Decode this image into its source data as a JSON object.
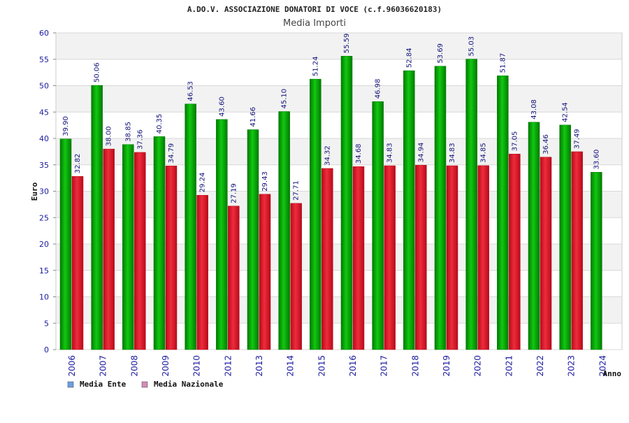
{
  "title": "A.DO.V. ASSOCIAZIONE DONATORI DI VOCE (c.f.96036620183)",
  "subtitle": "Media Importi",
  "colors": {
    "green": "#11c811",
    "green_dark": "#007a00",
    "red": "#ee2c3c",
    "red_dark": "#b80a1a",
    "legend_ente": "#6aa0e6",
    "legend_nazionale": "#d48cb8",
    "band": "#f2f2f2",
    "grid": "#d8d8d8"
  },
  "chart_data": {
    "type": "bar",
    "title": "A.DO.V. ASSOCIAZIONE DONATORI DI VOCE (c.f.96036620183)",
    "subtitle": "Media Importi",
    "xlabel": "Anno",
    "ylabel": "Euro",
    "ylim": [
      0,
      60
    ],
    "yticks": [
      0,
      5,
      10,
      15,
      20,
      25,
      30,
      35,
      40,
      45,
      50,
      55,
      60
    ],
    "grid": true,
    "legend_position": "bottom-left",
    "categories": [
      "2006",
      "2007",
      "2008",
      "2009",
      "2010",
      "2012",
      "2013",
      "2014",
      "2015",
      "2016",
      "2017",
      "2018",
      "2019",
      "2020",
      "2021",
      "2022",
      "2023",
      "2024"
    ],
    "series": [
      {
        "name": "Media Ente",
        "values": [
          39.9,
          50.06,
          38.85,
          40.35,
          46.53,
          43.6,
          41.66,
          45.1,
          51.24,
          55.59,
          46.98,
          52.84,
          53.69,
          55.03,
          51.87,
          43.08,
          42.54,
          33.6
        ],
        "labels": [
          "39.90",
          "50.06",
          "38.85",
          "40.35",
          "46.53",
          "43.60",
          "41.66",
          "45.10",
          "51.24",
          "55.59",
          "46.98",
          "52.84",
          "53.69",
          "55.03",
          "51.87",
          "43.08",
          "42.54",
          "33.60"
        ]
      },
      {
        "name": "Media Nazionale",
        "values": [
          32.82,
          38.0,
          37.36,
          34.79,
          29.24,
          27.19,
          29.43,
          27.71,
          34.32,
          34.68,
          34.83,
          34.94,
          34.83,
          34.85,
          37.05,
          36.46,
          37.49,
          null
        ],
        "labels": [
          "32.82",
          "38.00",
          "37.36",
          "34.79",
          "29.24",
          "27.19",
          "29.43",
          "27.71",
          "34.32",
          "34.68",
          "34.83",
          "34.94",
          "34.83",
          "34.85",
          "37.05",
          "36.46",
          "37.49",
          null
        ]
      }
    ]
  }
}
